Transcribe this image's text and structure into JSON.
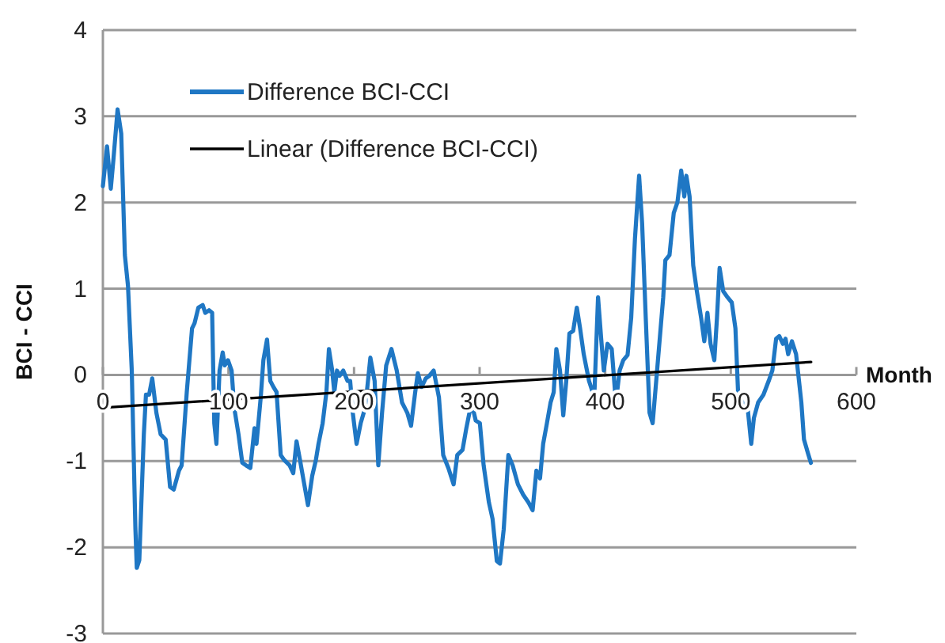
{
  "chart_data": {
    "type": "line",
    "xlabel": "Month",
    "ylabel": "BCI - CCI",
    "xlim": [
      0,
      600
    ],
    "xticks": [
      0,
      100,
      200,
      300,
      400,
      500,
      600
    ],
    "ylim": [
      -3,
      4
    ],
    "yticks": [
      -3,
      -2,
      -1,
      0,
      1,
      2,
      3,
      4
    ],
    "grid": "y",
    "legend": "top left",
    "marker": "none",
    "line_style": "solid",
    "series": [
      {
        "name": "Difference BCI-CCI",
        "color": "#1f77c4",
        "x": [
          0,
          3.3,
          6.3,
          8.4,
          11.7,
          14.6,
          17.5,
          20,
          23,
          25.9,
          27,
          29,
          32.6,
          34.3,
          36.8,
          39.3,
          42.6,
          46,
          50,
          53.5,
          56.4,
          60.6,
          62.7,
          66.8,
          71,
          73,
          76,
          79.5,
          81.5,
          84.5,
          87,
          88.7,
          90.4,
          92.9,
          95.4,
          97,
          99.6,
          102.5,
          104.6,
          108,
          111,
          114,
          117.4,
          120.7,
          122.3,
          125.7,
          127.8,
          130.7,
          133.3,
          135.8,
          138.3,
          141.6,
          144.5,
          148.7,
          151.6,
          154.2,
          157,
          160,
          163.3,
          166.7,
          169.6,
          171.7,
          175,
          178,
          180,
          182.6,
          184.3,
          186.4,
          188.5,
          191.4,
          194.8,
          196.9,
          199,
          202,
          205.3,
          208.9,
          213,
          216.4,
          219.3,
          222.3,
          225.6,
          229.8,
          234,
          238.2,
          242.4,
          245.4,
          248.7,
          250.8,
          253.8,
          257.1,
          260,
          263.4,
          267.6,
          271,
          275.1,
          279.3,
          282.2,
          286.4,
          289.4,
          293.5,
          296.9,
          300.2,
          303.2,
          307.4,
          310.3,
          313.7,
          316.2,
          319.2,
          322.9,
          326.3,
          330.5,
          334.7,
          338.9,
          342.2,
          345.2,
          348.1,
          350.6,
          353.6,
          356.5,
          359,
          361.1,
          364,
          366.6,
          369,
          371.5,
          374.5,
          377.4,
          380,
          382.9,
          387.1,
          391.3,
          394.3,
          396.8,
          398.9,
          401.8,
          405.2,
          408.5,
          411.5,
          414.4,
          417.8,
          420.7,
          423.7,
          427,
          429.4,
          432.3,
          435.3,
          437.8,
          442,
          446.2,
          447.9,
          451.2,
          454.6,
          457.5,
          460.5,
          463,
          464.6,
          467.2,
          470.1,
          473,
          476.4,
          478.9,
          481.4,
          483.9,
          486.9,
          489,
          491.1,
          494,
          497.4,
          500.8,
          503.7,
          505.8,
          509.2,
          513.4,
          516.3,
          518.4,
          521.8,
          526,
          530.2,
          533.1,
          536.1,
          538.6,
          541.5,
          543.6,
          545.7,
          548.7,
          552,
          556.2,
          558.3,
          561.3,
          563.8
        ],
        "values": [
          2.19,
          2.65,
          2.16,
          2.5,
          3.08,
          2.8,
          1.39,
          1.03,
          0.05,
          -1.79,
          -2.24,
          -2.15,
          -0.69,
          -0.23,
          -0.23,
          -0.04,
          -0.44,
          -0.69,
          -0.75,
          -1.3,
          -1.33,
          -1.11,
          -1.05,
          -0.2,
          0.54,
          0.6,
          0.78,
          0.81,
          0.72,
          0.75,
          0.72,
          -0.56,
          -0.8,
          0.05,
          0.26,
          0.11,
          0.17,
          0.05,
          -0.38,
          -0.69,
          -1.02,
          -1.05,
          -1.08,
          -0.62,
          -0.8,
          -0.26,
          0.17,
          0.41,
          -0.07,
          -0.14,
          -0.2,
          -0.93,
          -0.99,
          -1.05,
          -1.14,
          -0.77,
          -0.99,
          -1.24,
          -1.51,
          -1.17,
          -0.99,
          -0.8,
          -0.56,
          -0.2,
          0.3,
          0.05,
          -0.2,
          0.05,
          -0.01,
          0.05,
          -0.07,
          -0.07,
          -0.44,
          -0.8,
          -0.56,
          -0.38,
          0.2,
          -0.07,
          -1.05,
          -0.44,
          0.11,
          0.3,
          0.05,
          -0.32,
          -0.44,
          -0.59,
          -0.2,
          0.02,
          -0.14,
          -0.04,
          -0.01,
          0.05,
          -0.26,
          -0.93,
          -1.08,
          -1.27,
          -0.93,
          -0.87,
          -0.62,
          -0.32,
          -0.53,
          -0.56,
          -1.05,
          -1.48,
          -1.67,
          -2.16,
          -2.19,
          -1.79,
          -0.93,
          -1.05,
          -1.27,
          -1.39,
          -1.48,
          -1.57,
          -1.11,
          -1.2,
          -0.8,
          -0.56,
          -0.32,
          -0.2,
          0.3,
          0.05,
          -0.47,
          -0.07,
          0.48,
          0.51,
          0.78,
          0.54,
          0.24,
          -0.07,
          -0.26,
          0.9,
          0.42,
          0.05,
          0.36,
          0.3,
          -0.32,
          0.05,
          0.17,
          0.23,
          0.66,
          1.58,
          2.31,
          1.76,
          0.66,
          -0.44,
          -0.56,
          0.17,
          0.9,
          1.33,
          1.39,
          1.88,
          2.0,
          2.37,
          2.07,
          2.31,
          2.07,
          1.27,
          0.97,
          0.66,
          0.39,
          0.72,
          0.36,
          0.17,
          0.66,
          1.24,
          0.97,
          0.9,
          0.84,
          0.54,
          -0.2,
          -0.32,
          -0.38,
          -0.8,
          -0.5,
          -0.32,
          -0.23,
          -0.07,
          0.05,
          0.42,
          0.45,
          0.36,
          0.42,
          0.24,
          0.39,
          0.24,
          -0.32,
          -0.75,
          -0.9,
          -1.02
        ]
      },
      {
        "name": "Linear (Difference BCI-CCI)",
        "color": "#000000",
        "x": [
          0,
          564
        ],
        "values": [
          -0.38,
          0.15
        ]
      }
    ]
  }
}
